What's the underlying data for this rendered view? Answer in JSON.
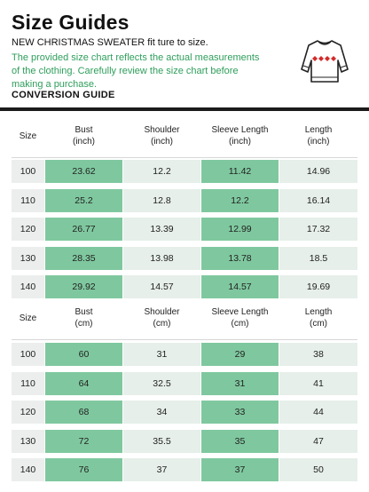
{
  "header": {
    "title": "Size Guides",
    "subtitle": "NEW CHRISTMAS SWEATER fit ture to size.",
    "note": "The provided size chart reflects the actual measurements of the clothing. Carefully review the size chart before making a purchase.",
    "conversion_label": "CONVERSION GUIDE",
    "icon": "sweater-icon",
    "accent_color": "#2e9e5b"
  },
  "inch_table": {
    "headers": {
      "size": "Size",
      "bust": [
        "Bust",
        "(inch)"
      ],
      "shoulder": [
        "Shoulder",
        "(inch)"
      ],
      "sleeve": [
        "Sleeve Length",
        "(inch)"
      ],
      "length": [
        "Length",
        "(inch)"
      ]
    },
    "rows": [
      {
        "size": "100",
        "bust": "23.62",
        "shoulder": "12.2",
        "sleeve": "11.42",
        "length": "14.96"
      },
      {
        "size": "110",
        "bust": "25.2",
        "shoulder": "12.8",
        "sleeve": "12.2",
        "length": "16.14"
      },
      {
        "size": "120",
        "bust": "26.77",
        "shoulder": "13.39",
        "sleeve": "12.99",
        "length": "17.32"
      },
      {
        "size": "130",
        "bust": "28.35",
        "shoulder": "13.98",
        "sleeve": "13.78",
        "length": "18.5"
      },
      {
        "size": "140",
        "bust": "29.92",
        "shoulder": "14.57",
        "sleeve": "14.57",
        "length": "19.69"
      }
    ]
  },
  "cm_table": {
    "headers": {
      "size": "Size",
      "bust": [
        "Bust",
        "(cm)"
      ],
      "shoulder": [
        "Shoulder",
        "(cm)"
      ],
      "sleeve": [
        "Sleeve Length",
        "(cm)"
      ],
      "length": [
        "Length",
        "(cm)"
      ]
    },
    "rows": [
      {
        "size": "100",
        "bust": "60",
        "shoulder": "31",
        "sleeve": "29",
        "length": "38"
      },
      {
        "size": "110",
        "bust": "64",
        "shoulder": "32.5",
        "sleeve": "31",
        "length": "41"
      },
      {
        "size": "120",
        "bust": "68",
        "shoulder": "34",
        "sleeve": "33",
        "length": "44"
      },
      {
        "size": "130",
        "bust": "72",
        "shoulder": "35.5",
        "sleeve": "35",
        "length": "47"
      },
      {
        "size": "140",
        "bust": "76",
        "shoulder": "37",
        "sleeve": "37",
        "length": "50"
      }
    ]
  }
}
